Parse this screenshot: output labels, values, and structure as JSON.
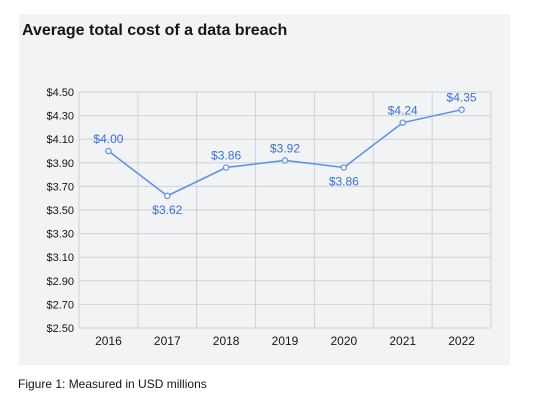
{
  "caption": "Figure 1: Measured in USD millions",
  "colors": {
    "line": "#5b8def",
    "label": "#3a6fe0",
    "grid": "#cfd2d6",
    "panel": "#f2f3f4",
    "text": "#161616"
  },
  "chart_data": {
    "type": "line",
    "title": "Average total cost of a data breach",
    "xlabel": "",
    "ylabel": "",
    "categories": [
      "2016",
      "2017",
      "2018",
      "2019",
      "2020",
      "2021",
      "2022"
    ],
    "series": [
      {
        "values": [
          4.0,
          3.62,
          3.86,
          3.92,
          3.86,
          4.24,
          4.35
        ],
        "labels": [
          "$4.00",
          "$3.62",
          "$3.86",
          "$3.92",
          "$3.86",
          "$4.24",
          "$4.35"
        ],
        "label_position": [
          "above",
          "below",
          "above",
          "above",
          "below",
          "above",
          "above"
        ]
      }
    ],
    "ylim": [
      2.5,
      4.5
    ],
    "yticks": [
      2.5,
      2.7,
      2.9,
      3.1,
      3.3,
      3.5,
      3.7,
      3.9,
      4.1,
      4.3,
      4.5
    ],
    "ytick_labels": [
      "$2.50",
      "$2.70",
      "$2.90",
      "$3.10",
      "$3.30",
      "$3.50",
      "$3.70",
      "$3.90",
      "$4.10",
      "$4.30",
      "$4.50"
    ],
    "grid": true,
    "legend": "none"
  }
}
